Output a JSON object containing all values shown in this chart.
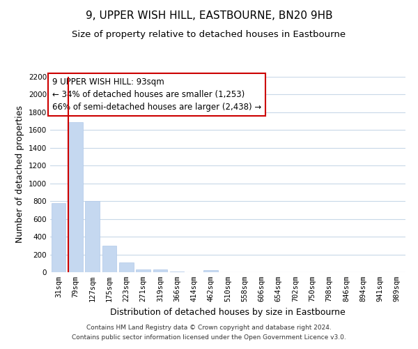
{
  "title": "9, UPPER WISH HILL, EASTBOURNE, BN20 9HB",
  "subtitle": "Size of property relative to detached houses in Eastbourne",
  "xlabel": "Distribution of detached houses by size in Eastbourne",
  "ylabel": "Number of detached properties",
  "categories": [
    "31sqm",
    "79sqm",
    "127sqm",
    "175sqm",
    "223sqm",
    "271sqm",
    "319sqm",
    "366sqm",
    "414sqm",
    "462sqm",
    "510sqm",
    "558sqm",
    "606sqm",
    "654sqm",
    "702sqm",
    "750sqm",
    "798sqm",
    "846sqm",
    "894sqm",
    "941sqm",
    "989sqm"
  ],
  "values": [
    775,
    1690,
    800,
    295,
    110,
    35,
    30,
    5,
    0,
    25,
    0,
    0,
    0,
    0,
    0,
    0,
    0,
    0,
    0,
    0,
    0
  ],
  "bar_color": "#c5d8f0",
  "bar_edge_color": "#b0c8e8",
  "highlight_bar_index": 1,
  "highlight_line_color": "#cc0000",
  "ylim": [
    0,
    2200
  ],
  "yticks": [
    0,
    200,
    400,
    600,
    800,
    1000,
    1200,
    1400,
    1600,
    1800,
    2000,
    2200
  ],
  "annotation_title": "9 UPPER WISH HILL: 93sqm",
  "annotation_line1": "← 34% of detached houses are smaller (1,253)",
  "annotation_line2": "66% of semi-detached houses are larger (2,438) →",
  "annotation_box_color": "#ffffff",
  "annotation_box_edge": "#cc0000",
  "footer_line1": "Contains HM Land Registry data © Crown copyright and database right 2024.",
  "footer_line2": "Contains public sector information licensed under the Open Government Licence v3.0.",
  "background_color": "#ffffff",
  "grid_color": "#c8d8e8",
  "title_fontsize": 11,
  "subtitle_fontsize": 9.5,
  "axis_label_fontsize": 9,
  "tick_fontsize": 7.5,
  "annotation_fontsize": 8.5,
  "footer_fontsize": 6.5
}
